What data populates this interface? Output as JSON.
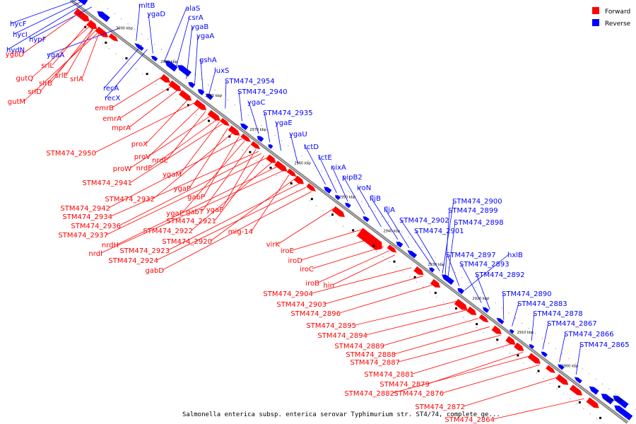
{
  "colors": {
    "forward": "#ff0000",
    "reverse": "#0000ff",
    "backbone": "#808080"
  },
  "legend": {
    "forward": {
      "label": "Forward",
      "color": "#ff0000"
    },
    "reverse": {
      "label": "Reverse",
      "color": "#0000ff"
    }
  },
  "caption": "Salmonella enterica subsp. enterica serovar Typhimurium str. ST4/74, complete ge...",
  "scale_ticks": [
    "3000 kbp",
    "2990 kbp",
    "2980 kbp",
    "2970 kbp",
    "2960 kbp",
    "2950 kbp",
    "2940 kbp",
    "2930 kbp",
    "2920 kbp",
    "2910 kbp",
    "2900 kbp",
    "2890 kbp"
  ],
  "reverse_genes": [
    "hycF",
    "hycI",
    "hypF",
    "hydN",
    "ygaA",
    "mltB",
    "ygaD",
    "alaS",
    "csrA",
    "ygaB",
    "ygaA",
    "gshA",
    "luxS",
    "recA",
    "recX",
    "STM474_2954",
    "STM474_2940",
    "ygaC",
    "STM474_2935",
    "ygaE",
    "ygaU",
    "tctD",
    "tctE",
    "nixA",
    "pipB2",
    "iroN",
    "fljB",
    "fljA",
    "STM474_2902",
    "STM474_2900",
    "STM474_2899",
    "STM474_2898",
    "STM474_2901",
    "STM474_2897",
    "hxlB",
    "STM474_2893",
    "STM474_2892",
    "STM474_2890",
    "STM474_2883",
    "STM474_2878",
    "STM474_2867",
    "STM474_2866",
    "STM474_2865"
  ],
  "forward_genes": [
    "ygbD",
    "srlL",
    "gutQ",
    "srlE",
    "srlA",
    "slrB",
    "srlD",
    "gutM",
    "emrB",
    "emrA",
    "mprA",
    "proX",
    "STM474_2950",
    "proV",
    "nrdE",
    "proW",
    "nrdF",
    "ygaM",
    "STM474_2941",
    "ygaP",
    "STM474_2932",
    "gabP",
    "STM474_2942",
    "ygaE",
    "gabT",
    "ygaF",
    "STM474_2934",
    "STM474_2936",
    "STM474_2921",
    "STM474_2937",
    "STM474_2922",
    "mig-14",
    "nrdH",
    "STM474_2920",
    "nrdI",
    "virK",
    "STM474_2923",
    "iroE",
    "STM474_2924",
    "iroD",
    "gabD",
    "iroC",
    "iroB",
    "hin",
    "STM474_2904",
    "STM474_2903",
    "STM474_2896",
    "STM474_2895",
    "STM474_2894",
    "STM474_2889",
    "STM474_2888",
    "STM474_2887",
    "STM474_2881",
    "STM474_2879",
    "STM474_2882",
    "STM474_2876",
    "STM474_2872",
    "STM474_2864"
  ]
}
